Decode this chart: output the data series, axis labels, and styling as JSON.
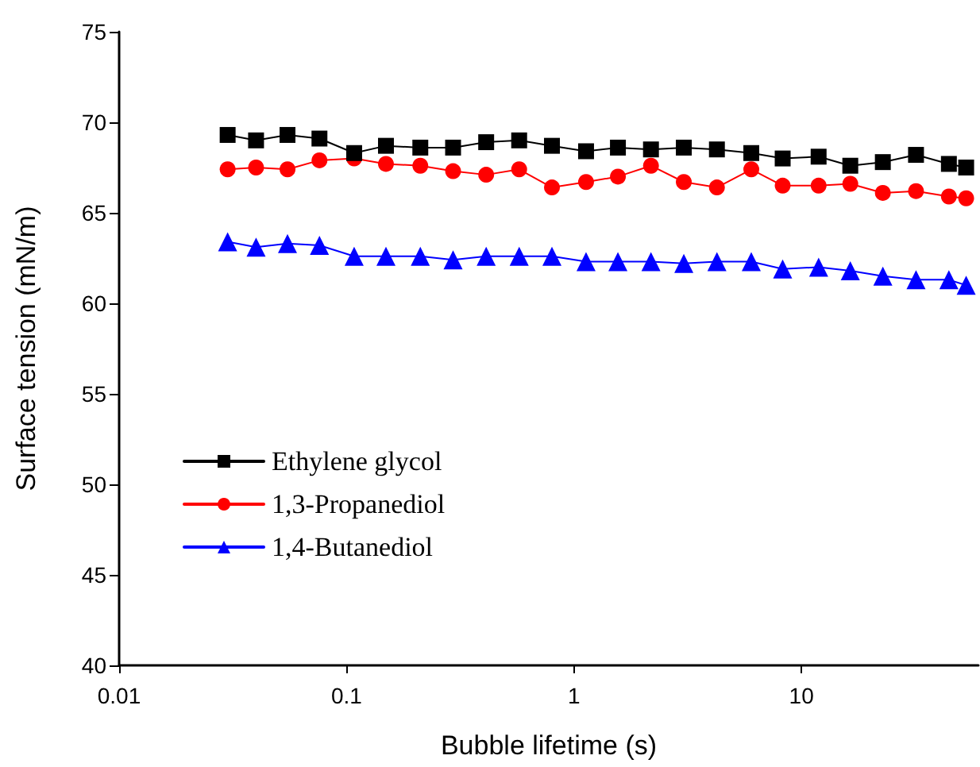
{
  "chart_data": {
    "type": "line",
    "xlabel": "Bubble lifetime (s)",
    "ylabel": "Surface tension (mN/m)",
    "log": "x",
    "xlim": [
      0.01,
      60
    ],
    "xticks": [
      0.01,
      0.1,
      1,
      10
    ],
    "ylim": [
      40,
      75
    ],
    "yticks": [
      40,
      45,
      50,
      55,
      60,
      65,
      70,
      75
    ],
    "grid": false,
    "legend": "bottom left",
    "x": [
      0.03,
      0.04,
      0.055,
      0.076,
      0.108,
      0.149,
      0.211,
      0.294,
      0.411,
      0.574,
      0.8,
      1.13,
      1.56,
      2.18,
      3.04,
      4.25,
      6.02,
      8.27,
      11.9,
      16.4,
      22.8,
      31.9,
      44.5,
      53
    ],
    "series": [
      {
        "name": "Ethylene glycol",
        "color": "#000000",
        "marker": "square",
        "values": [
          69.3,
          69.0,
          69.3,
          69.1,
          68.3,
          68.7,
          68.6,
          68.6,
          68.9,
          69.0,
          68.7,
          68.4,
          68.6,
          68.5,
          68.6,
          68.5,
          68.3,
          68.0,
          68.1,
          67.6,
          67.8,
          68.2,
          67.7,
          67.5
        ]
      },
      {
        "name": "1,3-Propanediol",
        "color": "#ff0000",
        "marker": "circle",
        "values": [
          67.4,
          67.5,
          67.4,
          67.9,
          68.0,
          67.7,
          67.6,
          67.3,
          67.1,
          67.4,
          66.4,
          66.7,
          67.0,
          67.6,
          66.7,
          66.4,
          67.4,
          66.5,
          66.5,
          66.6,
          66.1,
          66.2,
          65.9,
          65.8
        ]
      },
      {
        "name": "1,4-Butanediol",
        "color": "#0000ff",
        "marker": "triangle",
        "values": [
          63.4,
          63.1,
          63.3,
          63.2,
          62.6,
          62.6,
          62.6,
          62.4,
          62.6,
          62.6,
          62.6,
          62.3,
          62.3,
          62.3,
          62.2,
          62.3,
          62.3,
          61.9,
          62.0,
          61.8,
          61.5,
          61.3,
          61.3,
          61.0
        ]
      }
    ]
  }
}
